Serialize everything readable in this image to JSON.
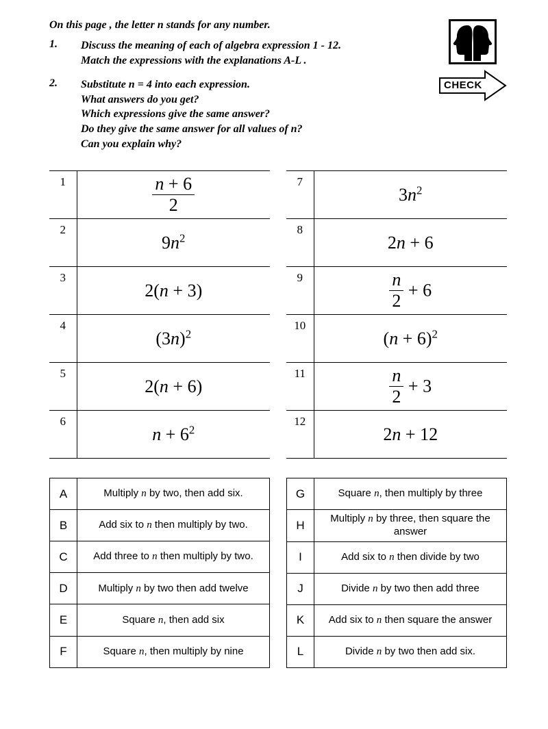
{
  "colors": {
    "text": "#000000",
    "background": "#ffffff",
    "border": "#000000"
  },
  "intro": "On this page , the letter n stands for any number.",
  "questions": [
    {
      "num": "1.",
      "lines": [
        "Discuss the meaning of each of algebra expression 1 - 12.",
        "Match the expressions with the explanations  A-L ."
      ]
    },
    {
      "num": "2.",
      "lines": [
        "Substitute  n = 4 into each expression.",
        "What answers do you get?",
        "Which expressions give the same answer?",
        "Do they give the same answer for all values of n?",
        "Can you explain why?"
      ]
    }
  ],
  "check_label": "CHECK",
  "expressions_left": [
    {
      "idx": "1",
      "type": "frac",
      "num": "n + 6",
      "den": "2"
    },
    {
      "idx": "2",
      "type": "plain",
      "pre": "9",
      "var": "n",
      "sup": "2"
    },
    {
      "idx": "3",
      "type": "plain",
      "pre": "2(",
      "var": "n",
      "post": " + 3)"
    },
    {
      "idx": "4",
      "type": "plain",
      "pre": "(3",
      "var": "n",
      "post": ")",
      "sup": "2"
    },
    {
      "idx": "5",
      "type": "plain",
      "pre": "2(",
      "var": "n",
      "post": " + 6)"
    },
    {
      "idx": "6",
      "type": "plain",
      "var": "n",
      "sup": "2",
      "post": " + 6"
    }
  ],
  "expressions_right": [
    {
      "idx": "7",
      "type": "plain",
      "pre": "3",
      "var": "n",
      "sup": "2"
    },
    {
      "idx": "8",
      "type": "plain",
      "pre": "2",
      "var": "n",
      "post": " + 6"
    },
    {
      "idx": "9",
      "type": "fracsplit",
      "num": "n",
      "den": "2",
      "tail": " + 6"
    },
    {
      "idx": "10",
      "type": "plain",
      "pre": "(",
      "var": "n",
      "post": " + 6)",
      "sup": "2"
    },
    {
      "idx": "11",
      "type": "fracsplit",
      "num": "n",
      "den": "2",
      "tail": " + 3"
    },
    {
      "idx": "12",
      "type": "plain",
      "pre": "2",
      "var": "n",
      "post": " + 12"
    }
  ],
  "explanations_left": [
    {
      "idx": "A",
      "text_pre": "Multiply ",
      "var": "n",
      "text_post": "  by two, then add six."
    },
    {
      "idx": "B",
      "text_pre": "Add six to ",
      "var": "n",
      "text_post": "  then multiply by two."
    },
    {
      "idx": "C",
      "text_pre": "Add three to ",
      "var": "n",
      "text_post": " then multiply by two."
    },
    {
      "idx": "D",
      "text_pre": "Multiply ",
      "var": "n",
      "text_post": " by two then add twelve"
    },
    {
      "idx": "E",
      "text_pre": "Square ",
      "var": "n",
      "text_post": ", then add six"
    },
    {
      "idx": "F",
      "text_pre": "Square ",
      "var": "n",
      "text_post": ", then multiply by nine"
    }
  ],
  "explanations_right": [
    {
      "idx": "G",
      "text_pre": "Square ",
      "var": "n",
      "text_post": ", then multiply by three"
    },
    {
      "idx": "H",
      "text_pre": "Multiply ",
      "var": "n",
      "text_post": " by three, then square the answer"
    },
    {
      "idx": "I",
      "text_pre": "Add six to ",
      "var": "n",
      "text_post": " then divide by two"
    },
    {
      "idx": "J",
      "text_pre": "Divide ",
      "var": "n",
      "text_post": " by two then add three"
    },
    {
      "idx": "K",
      "text_pre": "Add six to ",
      "var": "n",
      "text_post": " then square the answer"
    },
    {
      "idx": "L",
      "text_pre": "Divide ",
      "var": "n",
      "text_post": " by two then add six."
    }
  ]
}
